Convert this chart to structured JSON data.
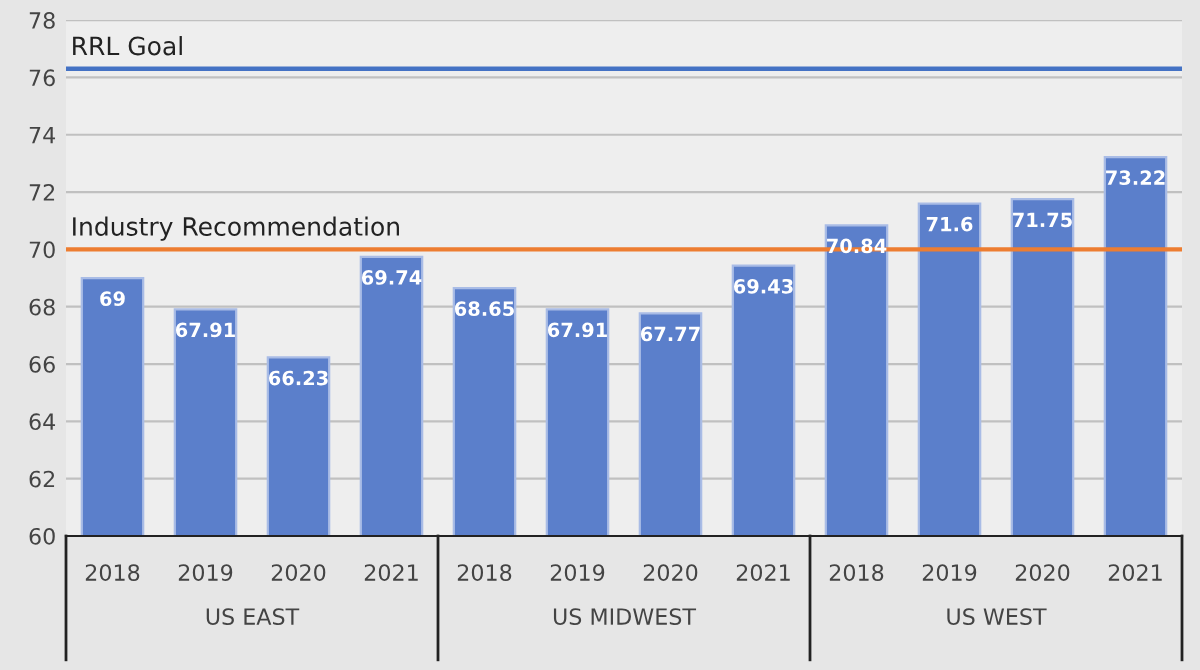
{
  "chart_data": {
    "type": "bar",
    "categories": [
      "2018",
      "2019",
      "2020",
      "2021",
      "2018",
      "2019",
      "2020",
      "2021",
      "2018",
      "2019",
      "2020",
      "2021"
    ],
    "values": [
      69,
      67.91,
      66.23,
      69.74,
      68.65,
      67.91,
      67.77,
      69.43,
      70.84,
      71.6,
      71.75,
      73.22
    ],
    "color": "#5b7fcb",
    "data_labels": true,
    "ylim": [
      60,
      78
    ],
    "yticks": [
      60,
      62,
      64,
      66,
      68,
      70,
      72,
      74,
      76,
      78
    ],
    "grid": "y",
    "ref_lines": [
      {
        "axis": "y",
        "value": 76.3,
        "label": "RRL Goal",
        "color": "#4472c4",
        "line_style": "solid"
      },
      {
        "axis": "y",
        "value": 70,
        "label": "Industry Recommendation",
        "color": "#ed7d31",
        "line_style": "solid"
      }
    ],
    "annotations": [
      "US EAST",
      "US MIDWEST",
      "US WEST"
    ]
  }
}
